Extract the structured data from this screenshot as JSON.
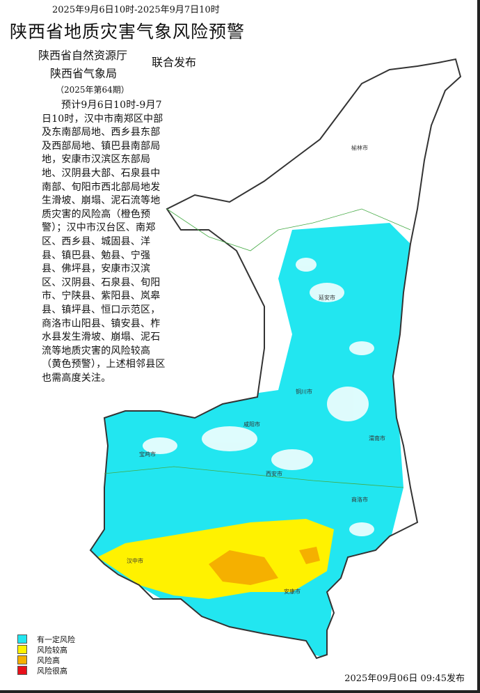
{
  "header": {
    "time_range": "2025年9月6日10时-2025年9月7日10时",
    "title": "陕西省地质灾害气象风险预警",
    "issuer_1": "陕西省自然资源厅",
    "issuer_2": "陕西省气象局",
    "joint_label": "联合发布",
    "issue_number": "（2025年第64期）"
  },
  "bulletin": "预计9月6日10时-9月7日10时，汉中市南郑区中部及东南部局地、西乡县东部及西部局地、镇巴县南部局地，安康市汉滨区东部局地、汉阴县大部、石泉县中南部、旬阳市西北部局地发生滑坡、崩塌、泥石流等地质灾害的风险高（橙色预警）；汉中市汉台区、南郑区、西乡县、城固县、洋县、镇巴县、勉县、宁强县、佛坪县，安康市汉滨区、汉阴县、石泉县、旬阳市、宁陕县、紫阳县、岚皋县、镇坪县、恒口示范区，商洛市山阳县、镇安县、柞水县发生滑坡、崩塌、泥石流等地质灾害的风险较高（黄色预警），上述相邻县区也需高度关注。",
  "map": {
    "cities": [
      "榆林市",
      "延安市",
      "铜川市",
      "咸阳市",
      "渭南市",
      "宝鸡市",
      "西安市",
      "商洛市",
      "汉中市",
      "安康市"
    ]
  },
  "legend": [
    {
      "label": "有一定风险",
      "color": "#22e6f0"
    },
    {
      "label": "风险较高",
      "color": "#fff200"
    },
    {
      "label": "风险高",
      "color": "#f5b000"
    },
    {
      "label": "风险很高",
      "color": "#e8101a"
    }
  ],
  "footer": {
    "published": "2025年09月06日 09:45发布"
  }
}
